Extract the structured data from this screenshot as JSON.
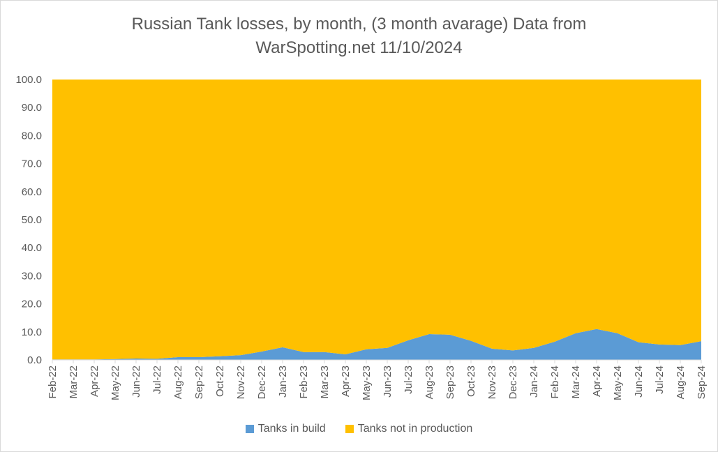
{
  "chart_data": {
    "type": "area",
    "stacked": true,
    "title_line1": "Russian Tank losses, by month, (3 month avarage) Data from",
    "title_line2": "WarSpotting.net 11/10/2024",
    "categories": [
      "Feb-22",
      "Mar-22",
      "Apr-22",
      "May-22",
      "Jun-22",
      "Jul-22",
      "Aug-22",
      "Sep-22",
      "Oct-22",
      "Nov-22",
      "Dec-22",
      "Jan-23",
      "Feb-23",
      "Mar-23",
      "Apr-23",
      "May-23",
      "Jun-23",
      "Jul-23",
      "Aug-23",
      "Sep-23",
      "Oct-23",
      "Nov-23",
      "Dec-23",
      "Jan-24",
      "Feb-24",
      "Mar-24",
      "Apr-24",
      "May-24",
      "Jun-24",
      "Jul-24",
      "Aug-24",
      "Sep-24"
    ],
    "series": [
      {
        "name": "Tanks in build",
        "color": "#5B9BD5",
        "values": [
          0.2,
          0.2,
          0.2,
          0.3,
          0.5,
          0.4,
          1.0,
          1.0,
          1.3,
          1.7,
          3.0,
          4.5,
          2.8,
          2.8,
          2.0,
          3.8,
          4.3,
          7.0,
          9.2,
          9.0,
          6.8,
          4.0,
          3.4,
          4.3,
          6.5,
          9.5,
          11.0,
          9.5,
          6.3,
          5.5,
          5.3,
          6.7
        ]
      },
      {
        "name": "Tanks not in production",
        "color": "#FFC000",
        "values": [
          99.8,
          99.8,
          99.8,
          99.7,
          99.5,
          99.6,
          99.0,
          99.0,
          98.7,
          98.3,
          97.0,
          95.5,
          97.2,
          97.2,
          98.0,
          96.2,
          95.7,
          93.0,
          90.8,
          91.0,
          93.2,
          96.0,
          96.6,
          95.7,
          93.5,
          90.5,
          89.0,
          90.5,
          93.7,
          94.5,
          94.7,
          93.3
        ]
      }
    ],
    "yticks": [
      "0.0",
      "10.0",
      "20.0",
      "30.0",
      "40.0",
      "50.0",
      "60.0",
      "70.0",
      "80.0",
      "90.0",
      "100.0"
    ],
    "ylim": [
      0,
      100
    ],
    "legend_position": "bottom",
    "grid": false
  }
}
